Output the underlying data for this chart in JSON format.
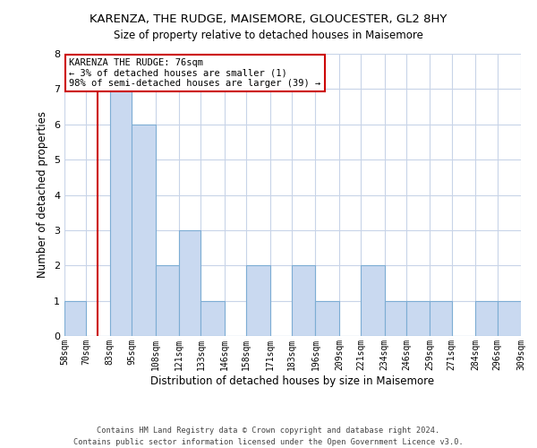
{
  "title": "KARENZA, THE RUDGE, MAISEMORE, GLOUCESTER, GL2 8HY",
  "subtitle": "Size of property relative to detached houses in Maisemore",
  "xlabel": "Distribution of detached houses by size in Maisemore",
  "ylabel": "Number of detached properties",
  "bin_labels": [
    "58sqm",
    "70sqm",
    "83sqm",
    "95sqm",
    "108sqm",
    "121sqm",
    "133sqm",
    "146sqm",
    "158sqm",
    "171sqm",
    "183sqm",
    "196sqm",
    "209sqm",
    "221sqm",
    "234sqm",
    "246sqm",
    "259sqm",
    "271sqm",
    "284sqm",
    "296sqm",
    "309sqm"
  ],
  "bin_edges": [
    58,
    70,
    83,
    95,
    108,
    121,
    133,
    146,
    158,
    171,
    183,
    196,
    209,
    221,
    234,
    246,
    259,
    271,
    284,
    296,
    309
  ],
  "bar_heights": [
    1,
    0,
    7,
    6,
    2,
    3,
    1,
    0,
    2,
    0,
    2,
    1,
    0,
    2,
    1,
    1,
    1,
    0,
    1,
    1,
    0
  ],
  "bar_color": "#c9d9f0",
  "bar_edgecolor": "#7dadd4",
  "property_size": 76,
  "vline_color": "#cc0000",
  "annotation_line1": "KARENZA THE RUDGE: 76sqm",
  "annotation_line2": "← 3% of detached houses are smaller (1)",
  "annotation_line3": "98% of semi-detached houses are larger (39) →",
  "annotation_box_edgecolor": "#cc0000",
  "ylim": [
    0,
    8
  ],
  "yticks": [
    0,
    1,
    2,
    3,
    4,
    5,
    6,
    7,
    8
  ],
  "footer_line1": "Contains HM Land Registry data © Crown copyright and database right 2024.",
  "footer_line2": "Contains public sector information licensed under the Open Government Licence v3.0.",
  "background_color": "#ffffff",
  "grid_color": "#c8d4e8"
}
